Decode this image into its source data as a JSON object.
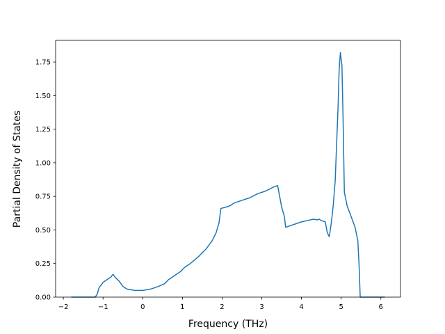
{
  "chart_data": {
    "type": "line",
    "x_label": "Frequency (THz)",
    "y_label": "Partial Density of States",
    "x": [
      -1.8,
      -1.2,
      -1.15,
      -1.1,
      -1.0,
      -0.9,
      -0.8,
      -0.75,
      -0.7,
      -0.6,
      -0.5,
      -0.4,
      -0.2,
      0,
      0.1,
      0.2,
      0.4,
      0.55,
      0.65,
      0.8,
      0.95,
      1.05,
      1.2,
      1.4,
      1.6,
      1.75,
      1.85,
      1.92,
      1.97,
      2.1,
      2.2,
      2.3,
      2.5,
      2.7,
      2.9,
      3.1,
      3.3,
      3.4,
      3.45,
      3.5,
      3.57,
      3.6,
      3.7,
      3.8,
      4.0,
      4.15,
      4.3,
      4.4,
      4.45,
      4.5,
      4.6,
      4.65,
      4.7,
      4.75,
      4.8,
      4.85,
      4.88,
      4.92,
      4.95,
      4.98,
      5.02,
      5.05,
      5.08,
      5.15,
      5.25,
      5.35,
      5.42,
      5.45,
      5.48,
      6.1
    ],
    "series": [
      {
        "color": "#1f77b4",
        "values": [
          0,
          0,
          0.02,
          0.07,
          0.11,
          0.13,
          0.15,
          0.17,
          0.15,
          0.12,
          0.08,
          0.06,
          0.05,
          0.05,
          0.055,
          0.06,
          0.08,
          0.1,
          0.13,
          0.16,
          0.19,
          0.22,
          0.25,
          0.3,
          0.36,
          0.42,
          0.48,
          0.55,
          0.66,
          0.67,
          0.68,
          0.7,
          0.72,
          0.74,
          0.77,
          0.79,
          0.82,
          0.83,
          0.75,
          0.67,
          0.6,
          0.52,
          0.53,
          0.54,
          0.56,
          0.57,
          0.58,
          0.575,
          0.58,
          0.57,
          0.56,
          0.48,
          0.45,
          0.55,
          0.68,
          0.87,
          1.1,
          1.4,
          1.7,
          1.82,
          1.72,
          1.3,
          0.78,
          0.68,
          0.6,
          0.52,
          0.42,
          0.25,
          0,
          0
        ]
      }
    ],
    "xlim": [
      -2.195,
      6.495
    ],
    "ylim": [
      0,
      1.911
    ],
    "xticks": [
      {
        "value": -2,
        "label": "−2"
      },
      {
        "value": -1,
        "label": "−1"
      },
      0,
      1,
      2,
      3,
      4,
      5,
      6
    ],
    "yticks": [
      {
        "value": 0,
        "label": "0.00"
      },
      {
        "value": 0.25,
        "label": "0.25"
      },
      {
        "value": 0.5,
        "label": "0.50"
      },
      {
        "value": 0.75,
        "label": "0.75"
      },
      {
        "value": 1.0,
        "label": "1.00"
      },
      {
        "value": 1.25,
        "label": "1.25"
      },
      {
        "value": 1.5,
        "label": "1.50"
      },
      {
        "value": 1.75,
        "label": "1.75"
      }
    ]
  }
}
